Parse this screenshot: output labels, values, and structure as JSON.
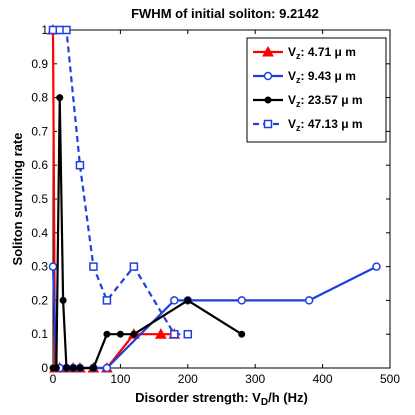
{
  "chart_data": {
    "type": "line",
    "title": "FWHM of initial soliton: 9.2142",
    "xlabel_prefix": "Disorder strength: V",
    "xlabel_sub": "D",
    "xlabel_suffix": "/h (Hz)",
    "ylabel": "Soliton surviving rate",
    "xlim": [
      0,
      500
    ],
    "ylim": [
      0,
      1
    ],
    "xticks": [
      0,
      100,
      200,
      300,
      400,
      500
    ],
    "yticks": [
      0,
      0.1,
      0.2,
      0.3,
      0.4,
      0.5,
      0.6,
      0.7,
      0.8,
      0.9,
      1
    ],
    "legend_position": "top-right",
    "series": [
      {
        "name_main": "V",
        "name_sub": "z",
        "name_rest": ": 4.71 μ m",
        "color": "#ff0000",
        "marker": "triangle",
        "dash": "solid",
        "x": [
          0,
          3,
          10,
          20,
          30,
          40,
          60,
          80,
          120,
          160,
          180
        ],
        "y": [
          1,
          0,
          0,
          0,
          0,
          0,
          0,
          0,
          0.1,
          0.1,
          0.1
        ]
      },
      {
        "name_main": "V",
        "name_sub": "z",
        "name_rest": ": 9.43 μ m",
        "color": "#1f3fe0",
        "marker": "circle",
        "dash": "solid",
        "x": [
          0,
          5,
          10,
          20,
          30,
          40,
          60,
          80,
          180,
          200,
          280,
          380,
          480
        ],
        "y": [
          0.3,
          0,
          0,
          0,
          0,
          0,
          0,
          0,
          0.2,
          0.2,
          0.2,
          0.2,
          0.3
        ]
      },
      {
        "name_main": "V",
        "name_sub": "z",
        "name_rest": ": 23.57 μ m",
        "color": "#000000",
        "marker": "dot",
        "dash": "solid",
        "x": [
          0,
          5,
          10,
          15,
          20,
          30,
          40,
          60,
          80,
          100,
          120,
          200,
          280
        ],
        "y": [
          0,
          0,
          0.8,
          0.2,
          0,
          0,
          0,
          0,
          0.1,
          0.1,
          0.1,
          0.2,
          0.1
        ]
      },
      {
        "name_main": "V",
        "name_sub": "z",
        "name_rest": ": 47.13 μ m",
        "color": "#1f3fe0",
        "marker": "square",
        "dash": "dashed",
        "x": [
          0,
          10,
          20,
          40,
          60,
          80,
          120,
          180,
          200
        ],
        "y": [
          1,
          1,
          1,
          0.6,
          0.3,
          0.2,
          0.3,
          0.1,
          0.1
        ]
      }
    ]
  }
}
